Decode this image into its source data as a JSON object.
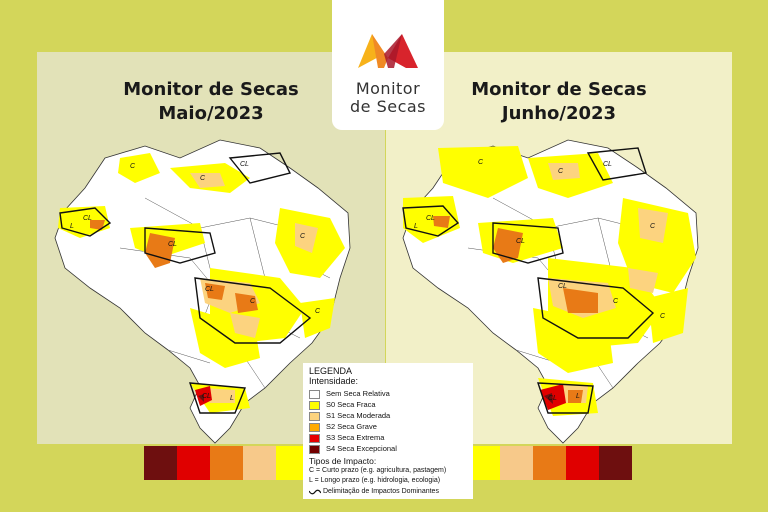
{
  "logo": {
    "line1": "Monitor",
    "line2": "de Secas"
  },
  "left_panel": {
    "title_line1": "Monitor de Secas",
    "title_line2": "Maio/2023"
  },
  "right_panel": {
    "title_line1": "Monitor de Secas",
    "title_line2": "Junho/2023"
  },
  "map_labels": {
    "c": "C",
    "l": "L",
    "cl": "CL"
  },
  "legend": {
    "heading": "LEGENDA",
    "intensity_heading": "Intensidade:",
    "intensity": [
      {
        "label": "Sem Seca Relativa",
        "color": "#ffffff"
      },
      {
        "label": "S0 Seca Fraca",
        "color": "#ffff00"
      },
      {
        "label": "S1 Seca Moderada",
        "color": "#fcd37f"
      },
      {
        "label": "S2 Seca Grave",
        "color": "#ffaa00"
      },
      {
        "label": "S3 Seca Extrema",
        "color": "#e60000"
      },
      {
        "label": "S4 Seca Excepcional",
        "color": "#730000"
      }
    ],
    "impact_heading": "Tipos de Impacto:",
    "impact_short": "C = Curto prazo (e.g. agricultura, pastagem)",
    "impact_long": "L = Longo prazo (e.g. hidrologia, ecologia)",
    "dominant": "Delimitação de Impactos Dominantes"
  },
  "scale_colors": {
    "left": [
      "#6e0f0f",
      "#e00000",
      "#e87a16",
      "#f7c98a",
      "#ffff00"
    ],
    "right": [
      "#ffff00",
      "#f7c98a",
      "#e87a16",
      "#e00000",
      "#6e0f0f"
    ]
  }
}
